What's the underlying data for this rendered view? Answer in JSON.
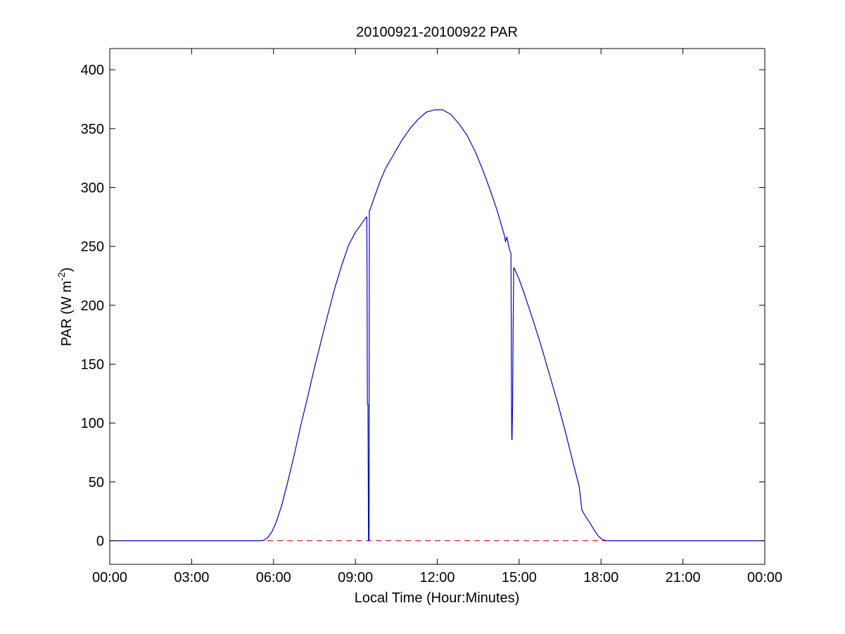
{
  "chart_data": {
    "type": "line",
    "title": "20100921-20100922 PAR",
    "xlabel": "Local Time (Hour:Minutes)",
    "ylabel_main": "PAR (W m",
    "ylabel_sup": "-2",
    "ylabel_close": ")",
    "xlim": [
      0,
      24
    ],
    "ylim": [
      -20,
      418
    ],
    "grid": false,
    "x_ticks": [
      {
        "value": 0,
        "label": "00:00"
      },
      {
        "value": 3,
        "label": "03:00"
      },
      {
        "value": 6,
        "label": "06:00"
      },
      {
        "value": 9,
        "label": "09:00"
      },
      {
        "value": 12,
        "label": "12:00"
      },
      {
        "value": 15,
        "label": "15:00"
      },
      {
        "value": 18,
        "label": "18:00"
      },
      {
        "value": 21,
        "label": "21:00"
      },
      {
        "value": 24,
        "label": "00:00"
      }
    ],
    "y_ticks": [
      {
        "value": 0,
        "label": "0"
      },
      {
        "value": 50,
        "label": "50"
      },
      {
        "value": 100,
        "label": "100"
      },
      {
        "value": 150,
        "label": "150"
      },
      {
        "value": 200,
        "label": "200"
      },
      {
        "value": 250,
        "label": "250"
      },
      {
        "value": 300,
        "label": "300"
      },
      {
        "value": 350,
        "label": "350"
      },
      {
        "value": 400,
        "label": "400"
      }
    ],
    "reference_line": {
      "y": 0,
      "color": "#cc0000",
      "style": "dashed"
    },
    "series": [
      {
        "color": "#0000cc",
        "points": [
          [
            0,
            0
          ],
          [
            5.5,
            0
          ],
          [
            5.65,
            0.5
          ],
          [
            5.8,
            3
          ],
          [
            5.95,
            8
          ],
          [
            6.1,
            16
          ],
          [
            6.3,
            30
          ],
          [
            6.5,
            48
          ],
          [
            6.75,
            72
          ],
          [
            7.0,
            98
          ],
          [
            7.25,
            122
          ],
          [
            7.5,
            147
          ],
          [
            7.75,
            170
          ],
          [
            8.0,
            193
          ],
          [
            8.25,
            215
          ],
          [
            8.5,
            234
          ],
          [
            8.75,
            251
          ],
          [
            9.0,
            262
          ],
          [
            9.25,
            270
          ],
          [
            9.4,
            275
          ],
          [
            9.42,
            275
          ],
          [
            9.44,
            116
          ],
          [
            9.46,
            116
          ],
          [
            9.48,
            0
          ],
          [
            9.5,
            0
          ],
          [
            9.51,
            280
          ],
          [
            9.55,
            282
          ],
          [
            9.7,
            292
          ],
          [
            9.9,
            305
          ],
          [
            10.1,
            316
          ],
          [
            10.4,
            328
          ],
          [
            10.7,
            340
          ],
          [
            11.0,
            350
          ],
          [
            11.3,
            358
          ],
          [
            11.6,
            364
          ],
          [
            11.9,
            366
          ],
          [
            12.2,
            366
          ],
          [
            12.5,
            362
          ],
          [
            12.8,
            354
          ],
          [
            13.1,
            344
          ],
          [
            13.4,
            330
          ],
          [
            13.7,
            313
          ],
          [
            13.95,
            297
          ],
          [
            14.2,
            280
          ],
          [
            14.45,
            260
          ],
          [
            14.5,
            254
          ],
          [
            14.55,
            258
          ],
          [
            14.6,
            252
          ],
          [
            14.65,
            247
          ],
          [
            14.7,
            244
          ],
          [
            14.72,
            118
          ],
          [
            14.73,
            86
          ],
          [
            14.74,
            86
          ],
          [
            14.76,
            118
          ],
          [
            14.78,
            183
          ],
          [
            14.8,
            232
          ],
          [
            14.85,
            230
          ],
          [
            15.0,
            222
          ],
          [
            15.2,
            209
          ],
          [
            15.5,
            188
          ],
          [
            15.8,
            166
          ],
          [
            16.1,
            142
          ],
          [
            16.4,
            118
          ],
          [
            16.7,
            92
          ],
          [
            17.0,
            64
          ],
          [
            17.2,
            46
          ],
          [
            17.3,
            26
          ],
          [
            17.45,
            20
          ],
          [
            17.6,
            15
          ],
          [
            17.75,
            9
          ],
          [
            17.9,
            4
          ],
          [
            18.05,
            1
          ],
          [
            18.2,
            0
          ],
          [
            24,
            0
          ]
        ]
      }
    ]
  }
}
